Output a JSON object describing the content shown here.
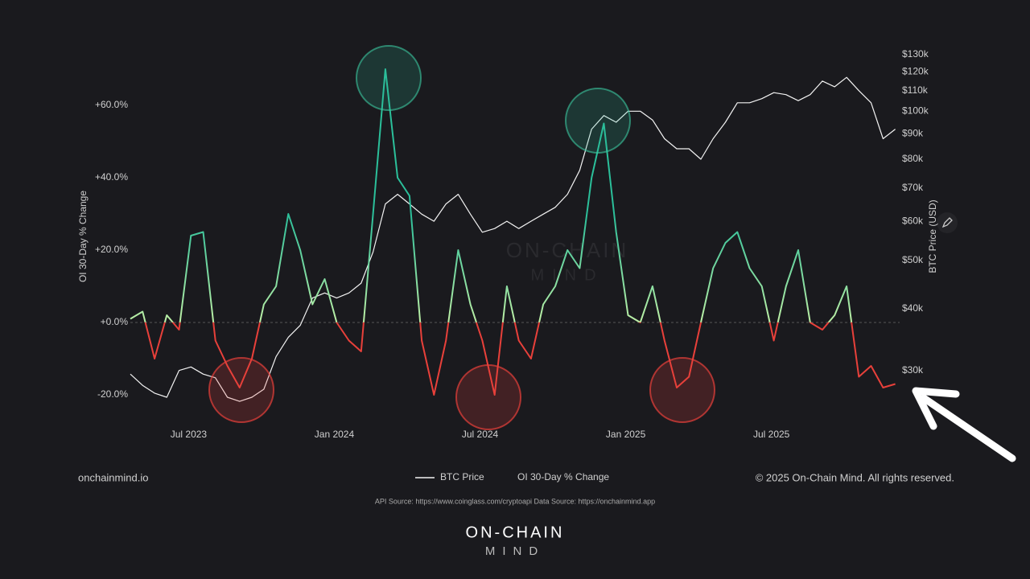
{
  "chart_data": {
    "type": "line",
    "x": [
      2023.3,
      2023.342,
      2023.383,
      2023.425,
      2023.467,
      2023.508,
      2023.55,
      2023.592,
      2023.633,
      2023.675,
      2023.717,
      2023.758,
      2023.8,
      2023.842,
      2023.883,
      2023.925,
      2023.967,
      2024.008,
      2024.05,
      2024.092,
      2024.133,
      2024.175,
      2024.217,
      2024.258,
      2024.3,
      2024.342,
      2024.383,
      2024.425,
      2024.467,
      2024.508,
      2024.55,
      2024.592,
      2024.633,
      2024.675,
      2024.717,
      2024.758,
      2024.8,
      2024.842,
      2024.883,
      2024.925,
      2024.967,
      2025.008,
      2025.05,
      2025.092,
      2025.133,
      2025.175,
      2025.217,
      2025.258,
      2025.3,
      2025.342,
      2025.383,
      2025.425,
      2025.467,
      2025.508,
      2025.55,
      2025.592,
      2025.633,
      2025.675,
      2025.717,
      2025.758,
      2025.8,
      2025.842,
      2025.883,
      2025.925
    ],
    "series": [
      {
        "name": "BTC Price",
        "color": "#f2f2f2",
        "axis": "y2",
        "values": [
          29500,
          28000,
          27000,
          26500,
          30000,
          30500,
          29500,
          29000,
          26500,
          26000,
          26500,
          27500,
          32000,
          35000,
          37000,
          42000,
          43000,
          42000,
          43000,
          45000,
          52000,
          65000,
          68000,
          65000,
          62000,
          60000,
          65000,
          68000,
          62000,
          57000,
          58000,
          60000,
          58000,
          60000,
          62000,
          64000,
          68000,
          76000,
          92000,
          98000,
          95000,
          100000,
          100000,
          96000,
          88000,
          84000,
          84000,
          80000,
          88000,
          95000,
          104000,
          104000,
          106000,
          109000,
          108000,
          105000,
          108000,
          115000,
          112000,
          117000,
          110000,
          104000,
          88000,
          92000
        ]
      },
      {
        "name": "OI 30-Day % Change",
        "color": "#2bbf9a",
        "near_zero_color": "#bdf0a6",
        "negative_color": "#e8403a",
        "values": [
          1,
          3,
          -10,
          2,
          -2,
          24,
          25,
          -5,
          -12,
          -18,
          -10,
          5,
          10,
          30,
          20,
          5,
          12,
          0,
          -5,
          -8,
          30,
          70,
          40,
          35,
          -5,
          -20,
          -5,
          20,
          5,
          -5,
          -20,
          10,
          -5,
          -10,
          5,
          10,
          20,
          15,
          40,
          55,
          25,
          2,
          0,
          10,
          -5,
          -18,
          -15,
          0,
          15,
          22,
          25,
          15,
          10,
          -5,
          10,
          20,
          0,
          -2,
          2,
          10,
          -15,
          -12,
          -18,
          -17
        ]
      }
    ],
    "xlim": [
      2023.3,
      2025.94
    ],
    "xticks": [
      {
        "value": 2023.5,
        "label": "Jul 2023"
      },
      {
        "value": 2024.0,
        "label": "Jan 2024"
      },
      {
        "value": 2024.5,
        "label": "Jul 2024"
      },
      {
        "value": 2025.0,
        "label": "Jan 2025"
      },
      {
        "value": 2025.5,
        "label": "Jul 2025"
      }
    ],
    "ylim": [
      -30,
      75
    ],
    "yticks": [
      {
        "value": -20,
        "label": "-20.0%"
      },
      {
        "value": 0,
        "label": "+0.0%"
      },
      {
        "value": 20,
        "label": "+20.0%"
      },
      {
        "value": 40,
        "label": "+40.0%"
      },
      {
        "value": 60,
        "label": "+60.0%"
      }
    ],
    "y2lim": [
      22650,
      132200
    ],
    "y2_log": true,
    "y2ticks": [
      {
        "value": 30000,
        "label": "$30k"
      },
      {
        "value": 40000,
        "label": "$40k"
      },
      {
        "value": 50000,
        "label": "$50k"
      },
      {
        "value": 60000,
        "label": "$60k"
      },
      {
        "value": 70000,
        "label": "$70k"
      },
      {
        "value": 80000,
        "label": "$80k"
      },
      {
        "value": 90000,
        "label": "$90k"
      },
      {
        "value": 100000,
        "label": "$100k"
      },
      {
        "value": 110000,
        "label": "$110k"
      },
      {
        "value": 120000,
        "label": "$120k"
      },
      {
        "value": 130000,
        "label": "$130k"
      }
    ],
    "ylabel": "OI 30-Day % Change",
    "y2label": "BTC Price (USD)",
    "zero_line": true,
    "grid": false,
    "legend": "bottom"
  },
  "footer": {
    "site": "onchainmind.io",
    "copyright": "© 2025 On-Chain Mind. All rights reserved.",
    "source": "API Source: https://www.coinglass.com/cryptoapi Data Source: https://onchainmind.app",
    "logo_top": "ON-CHAIN",
    "logo_bottom": "MIND"
  }
}
